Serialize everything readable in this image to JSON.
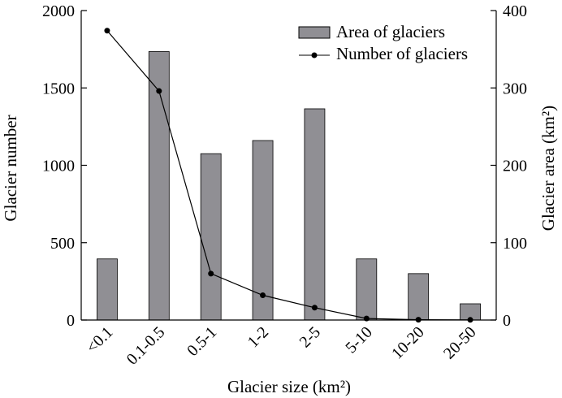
{
  "chart_data": {
    "type": "bar",
    "title": "",
    "categories": [
      "<0.1",
      "0.1-0.5",
      "0.5-1",
      "1-2",
      "2-5",
      "5-10",
      "10-20",
      "20-50"
    ],
    "series": [
      {
        "name": "Area of glaciers",
        "type": "bar",
        "axis": "right",
        "values": [
          79,
          347,
          215,
          232,
          273,
          79,
          60,
          21
        ],
        "color": "#908f94"
      },
      {
        "name": "Number of glaciers",
        "type": "line",
        "axis": "left",
        "values": [
          1870,
          1480,
          300,
          160,
          80,
          10,
          2,
          1
        ],
        "color": "#000000"
      }
    ],
    "xlabel": "Glacier size (km²)",
    "ylabel_left": "Glacier number",
    "ylabel_right": "Glacier area (km²)",
    "ylim_left": [
      0,
      2000
    ],
    "ylim_right": [
      0,
      400
    ],
    "yticks_left": [
      "0",
      "500",
      "1000",
      "1500",
      "2000"
    ],
    "yticks_right": [
      "0",
      "100",
      "200",
      "300",
      "400"
    ],
    "grid": false,
    "legend": "top-right"
  }
}
